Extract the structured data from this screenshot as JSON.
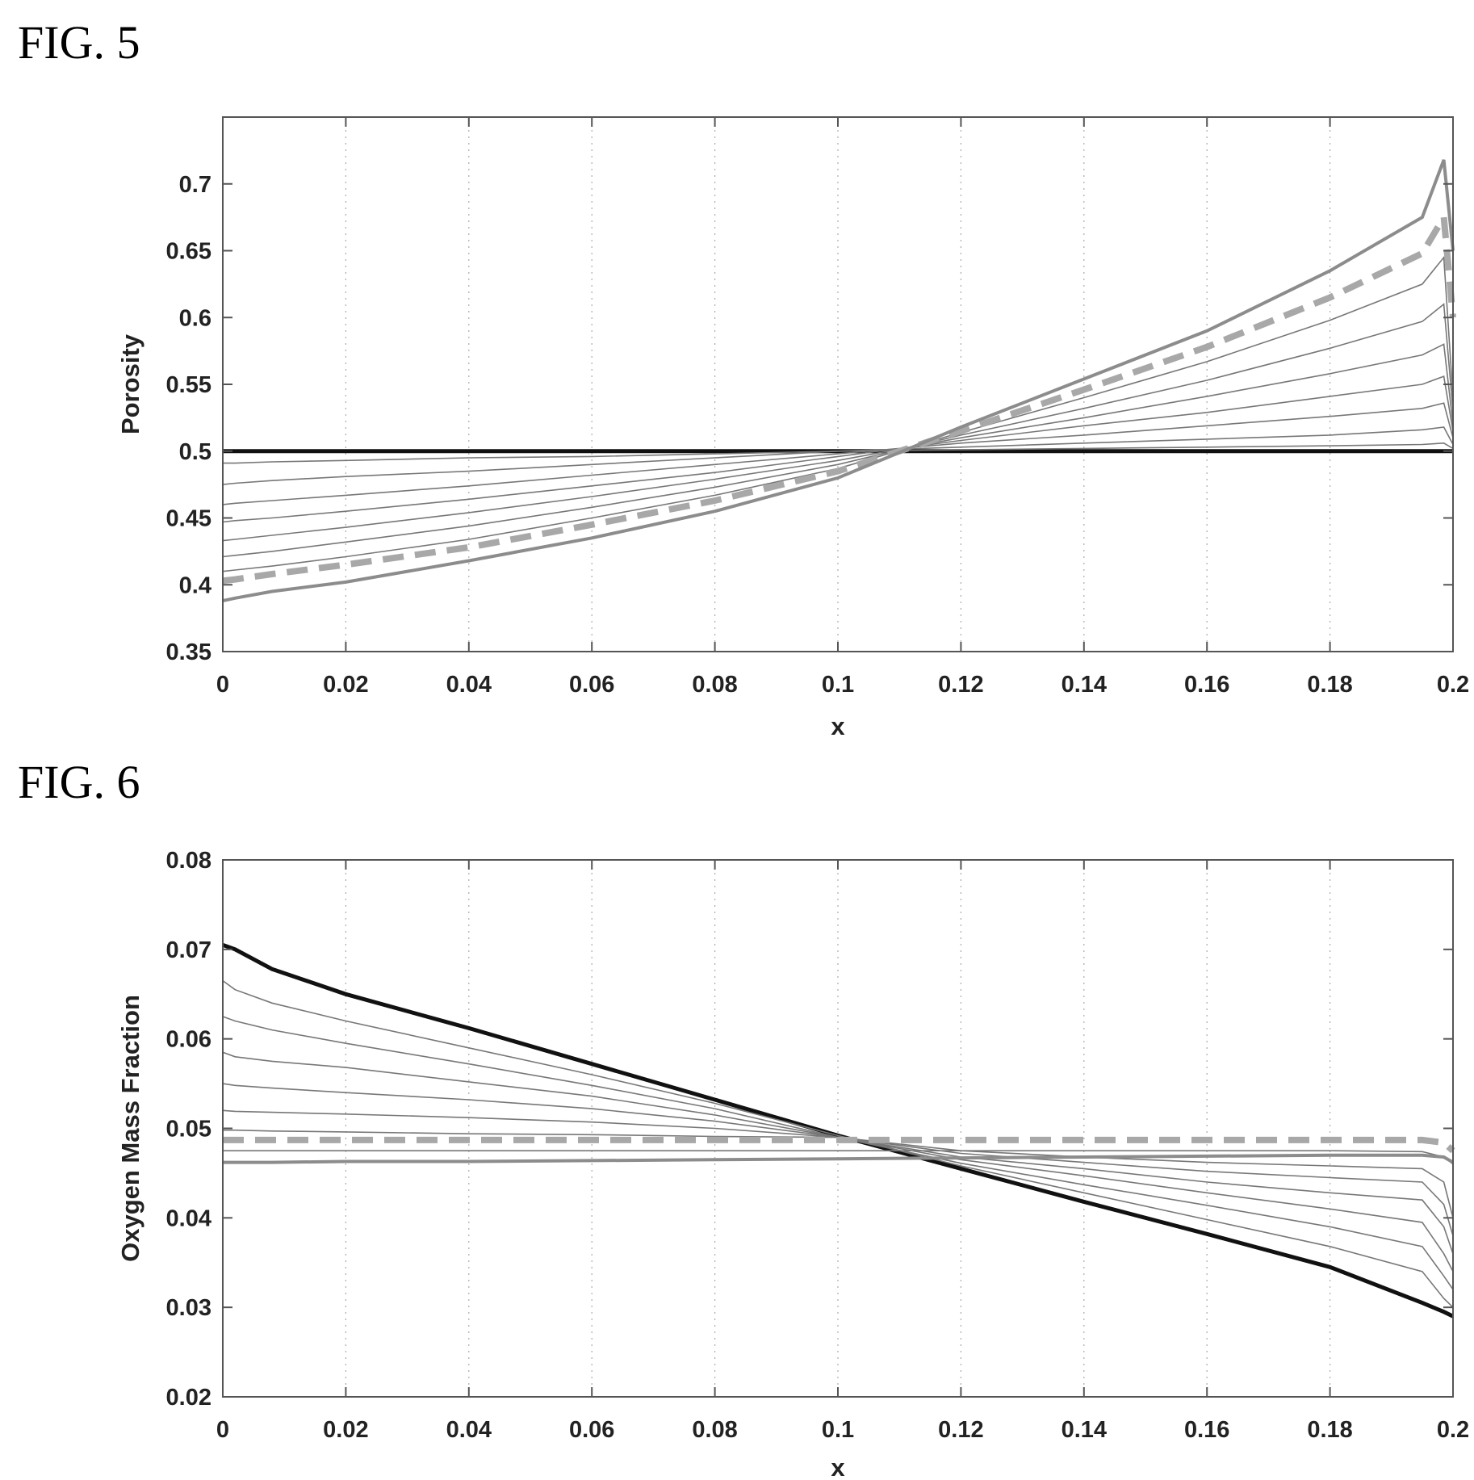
{
  "chart_data": [
    {
      "id": "fig5",
      "figure_label": "FIG. 5",
      "type": "line",
      "xlabel": "x",
      "ylabel": "Porosity",
      "xlim": [
        0,
        0.2
      ],
      "ylim": [
        0.35,
        0.75
      ],
      "xticks": [
        "0",
        "0.02",
        "0.04",
        "0.06",
        "0.08",
        "0.1",
        "0.12",
        "0.14",
        "0.16",
        "0.18",
        "0.2"
      ],
      "yticks": [
        "0.35",
        "0.4",
        "0.45",
        "0.5",
        "0.55",
        "0.6",
        "0.65",
        "0.7"
      ],
      "ytick_values": [
        0.35,
        0.4,
        0.45,
        0.5,
        0.55,
        0.6,
        0.65,
        0.7
      ],
      "grid": true,
      "colors": {
        "initial": "#111111",
        "intermediate": "#777777",
        "dashed": "#a8a8a8",
        "final": "#8c8c8c"
      },
      "x": [
        0,
        0.002,
        0.008,
        0.02,
        0.04,
        0.06,
        0.08,
        0.1,
        0.12,
        0.14,
        0.16,
        0.18,
        0.195,
        0.1985,
        0.2
      ],
      "series": [
        {
          "role": "initial",
          "values": [
            0.5,
            0.5,
            0.5,
            0.5,
            0.5,
            0.5,
            0.5,
            0.5,
            0.5,
            0.5,
            0.5,
            0.5,
            0.5,
            0.5,
            0.5
          ]
        },
        {
          "role": "intermediate",
          "values": [
            0.491,
            0.491,
            0.492,
            0.493,
            0.495,
            0.496,
            0.498,
            0.5,
            0.501,
            0.502,
            0.503,
            0.504,
            0.505,
            0.506,
            0.502
          ]
        },
        {
          "role": "intermediate",
          "values": [
            0.475,
            0.476,
            0.478,
            0.481,
            0.485,
            0.49,
            0.495,
            0.5,
            0.503,
            0.506,
            0.509,
            0.512,
            0.516,
            0.518,
            0.505
          ]
        },
        {
          "role": "intermediate",
          "values": [
            0.46,
            0.461,
            0.463,
            0.467,
            0.474,
            0.482,
            0.49,
            0.498,
            0.506,
            0.512,
            0.519,
            0.526,
            0.532,
            0.536,
            0.51
          ]
        },
        {
          "role": "intermediate",
          "values": [
            0.447,
            0.448,
            0.45,
            0.455,
            0.464,
            0.474,
            0.484,
            0.496,
            0.508,
            0.519,
            0.529,
            0.541,
            0.55,
            0.556,
            0.515
          ]
        },
        {
          "role": "intermediate",
          "values": [
            0.433,
            0.434,
            0.437,
            0.443,
            0.454,
            0.466,
            0.479,
            0.493,
            0.51,
            0.525,
            0.541,
            0.558,
            0.572,
            0.58,
            0.52
          ]
        },
        {
          "role": "intermediate",
          "values": [
            0.421,
            0.422,
            0.425,
            0.432,
            0.444,
            0.458,
            0.473,
            0.49,
            0.512,
            0.532,
            0.553,
            0.577,
            0.597,
            0.61,
            0.53
          ]
        },
        {
          "role": "intermediate",
          "values": [
            0.41,
            0.411,
            0.414,
            0.421,
            0.434,
            0.45,
            0.467,
            0.487,
            0.514,
            0.54,
            0.567,
            0.598,
            0.625,
            0.645,
            0.54
          ]
        },
        {
          "role": "dashed",
          "values": [
            0.403,
            0.404,
            0.408,
            0.415,
            0.428,
            0.445,
            0.463,
            0.485,
            0.515,
            0.546,
            0.578,
            0.615,
            0.648,
            0.675,
            0.6
          ]
        },
        {
          "role": "final",
          "values": [
            0.388,
            0.39,
            0.395,
            0.402,
            0.418,
            0.435,
            0.455,
            0.48,
            0.518,
            0.554,
            0.59,
            0.635,
            0.675,
            0.718,
            0.65
          ]
        }
      ]
    },
    {
      "id": "fig6",
      "figure_label": "FIG. 6",
      "type": "line",
      "xlabel": "x",
      "ylabel": "Oxygen Mass Fraction",
      "xlim": [
        0,
        0.2
      ],
      "ylim": [
        0.02,
        0.08
      ],
      "xticks": [
        "0",
        "0.02",
        "0.04",
        "0.06",
        "0.08",
        "0.1",
        "0.12",
        "0.14",
        "0.16",
        "0.18",
        "0.2"
      ],
      "yticks": [
        "0.02",
        "0.03",
        "0.04",
        "0.05",
        "0.06",
        "0.07",
        "0.08"
      ],
      "ytick_values": [
        0.02,
        0.03,
        0.04,
        0.05,
        0.06,
        0.07,
        0.08
      ],
      "grid": true,
      "colors": {
        "initial": "#111111",
        "intermediate": "#777777",
        "dashed": "#a8a8a8",
        "final": "#8c8c8c"
      },
      "x": [
        0,
        0.002,
        0.008,
        0.02,
        0.04,
        0.06,
        0.08,
        0.1,
        0.12,
        0.14,
        0.16,
        0.18,
        0.195,
        0.1985,
        0.2
      ],
      "series": [
        {
          "role": "initial",
          "values": [
            0.0705,
            0.07,
            0.0678,
            0.065,
            0.0612,
            0.0572,
            0.0532,
            0.0492,
            0.0455,
            0.0418,
            0.0382,
            0.0345,
            0.0305,
            0.0295,
            0.029
          ]
        },
        {
          "role": "intermediate",
          "values": [
            0.0665,
            0.0655,
            0.064,
            0.062,
            0.059,
            0.056,
            0.0528,
            0.0492,
            0.0458,
            0.0428,
            0.0398,
            0.0368,
            0.034,
            0.031,
            0.03
          ]
        },
        {
          "role": "intermediate",
          "values": [
            0.0625,
            0.062,
            0.061,
            0.0595,
            0.0572,
            0.0548,
            0.0522,
            0.049,
            0.0461,
            0.0437,
            0.0414,
            0.039,
            0.0368,
            0.0335,
            0.032
          ]
        },
        {
          "role": "intermediate",
          "values": [
            0.0585,
            0.058,
            0.0575,
            0.0568,
            0.0552,
            0.0536,
            0.0515,
            0.049,
            0.0465,
            0.0447,
            0.0428,
            0.041,
            0.0395,
            0.036,
            0.034
          ]
        },
        {
          "role": "intermediate",
          "values": [
            0.055,
            0.0548,
            0.0545,
            0.054,
            0.0532,
            0.0522,
            0.0508,
            0.049,
            0.0468,
            0.0455,
            0.044,
            0.0428,
            0.042,
            0.039,
            0.036
          ]
        },
        {
          "role": "intermediate",
          "values": [
            0.052,
            0.0519,
            0.0518,
            0.0516,
            0.0512,
            0.0507,
            0.05,
            0.049,
            0.0472,
            0.0462,
            0.0452,
            0.0445,
            0.044,
            0.0415,
            0.038
          ]
        },
        {
          "role": "intermediate",
          "values": [
            0.0498,
            0.0498,
            0.0497,
            0.0496,
            0.0494,
            0.0493,
            0.0491,
            0.049,
            0.0475,
            0.0468,
            0.0462,
            0.0458,
            0.0455,
            0.044,
            0.04
          ]
        },
        {
          "role": "dashed",
          "values": [
            0.0487,
            0.0487,
            0.0487,
            0.0487,
            0.0487,
            0.0487,
            0.0487,
            0.0487,
            0.0487,
            0.0487,
            0.0487,
            0.0487,
            0.0487,
            0.0484,
            0.0475
          ]
        },
        {
          "role": "intermediate",
          "values": [
            0.0475,
            0.0475,
            0.0475,
            0.0475,
            0.0475,
            0.0475,
            0.0475,
            0.0475,
            0.0475,
            0.0475,
            0.0475,
            0.0475,
            0.0474,
            0.0468,
            0.046
          ]
        },
        {
          "role": "final",
          "values": [
            0.0462,
            0.0462,
            0.0462,
            0.0463,
            0.0463,
            0.0464,
            0.0465,
            0.0466,
            0.0467,
            0.0468,
            0.0469,
            0.047,
            0.047,
            0.0468,
            0.0462
          ]
        }
      ]
    }
  ]
}
